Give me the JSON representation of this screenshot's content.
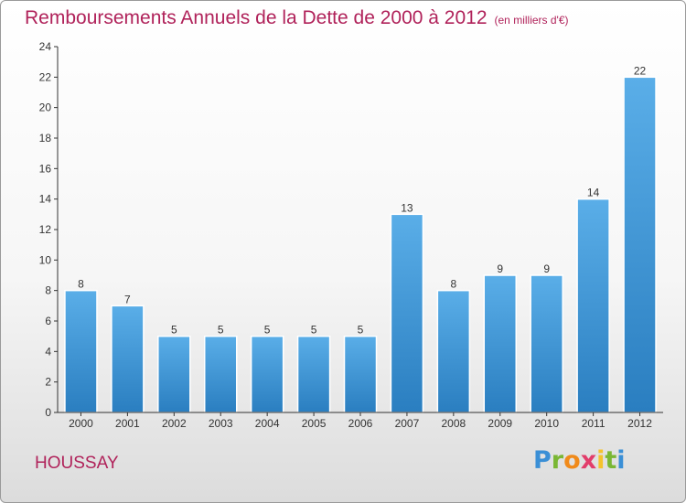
{
  "title": "Remboursements Annuels de la Dette de 2000 à 2012",
  "subtitle": "(en milliers d'€)",
  "commune": "HOUSSAY",
  "logo": {
    "text": "Proxiti",
    "letters": [
      "P",
      "r",
      "o",
      "x",
      "i",
      "t",
      "i"
    ]
  },
  "colors": {
    "bar_light": "#5aaee8",
    "bar_dark": "#2a7ec0",
    "title": "#b0225a"
  },
  "chart_data": {
    "type": "bar",
    "title": "Remboursements Annuels de la Dette de 2000 à 2012",
    "subtitle": "(en milliers d'€)",
    "categories": [
      "2000",
      "2001",
      "2002",
      "2003",
      "2004",
      "2005",
      "2006",
      "2007",
      "2008",
      "2009",
      "2010",
      "2011",
      "2012"
    ],
    "values": [
      8,
      7,
      5,
      5,
      5,
      5,
      5,
      13,
      8,
      9,
      9,
      14,
      22
    ],
    "ylim": [
      0,
      24
    ],
    "yticks": [
      0,
      2,
      4,
      6,
      8,
      10,
      12,
      14,
      16,
      18,
      20,
      22,
      24
    ],
    "grid": false,
    "legend": "none"
  }
}
